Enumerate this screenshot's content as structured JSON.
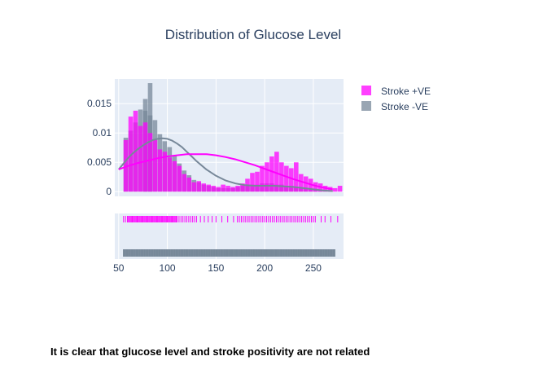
{
  "caption": "It is clear that glucose level and stroke positivity are not related",
  "colors": {
    "plot_bg": "#e5ecf6",
    "grid": "#ffffff",
    "stroke_pos": "#ff00ff",
    "stroke_neg": "#778899"
  },
  "chart_data": {
    "type": "histogram",
    "title": "Distribution of Glucose Level",
    "xlabel": "",
    "ylabel": "",
    "xlim": [
      46,
      281
    ],
    "ylim": [
      -0.0008,
      0.0192
    ],
    "x_ticks": [
      50,
      100,
      150,
      200,
      250
    ],
    "y_ticks": [
      {
        "value": 0,
        "label": "0"
      },
      {
        "value": 0.005,
        "label": "0.005"
      },
      {
        "value": 0.01,
        "label": "0.01"
      },
      {
        "value": 0.015,
        "label": "0.015"
      }
    ],
    "grid": true,
    "legend_position": "top-right",
    "series": [
      {
        "name": "Stroke +VE",
        "color": "#ff00ff",
        "opacity": 0.75,
        "bin_start": 55,
        "bin_width": 5,
        "density": [
          0.0088,
          0.0128,
          0.0138,
          0.0112,
          0.0118,
          0.01,
          0.0088,
          0.0072,
          0.0068,
          0.0058,
          0.0052,
          0.0044,
          0.003,
          0.0024,
          0.0016,
          0.0018,
          0.0014,
          0.0012,
          0.001,
          0.0008,
          0.0012,
          0.001,
          0.0008,
          0.001,
          0.0014,
          0.0022,
          0.0032,
          0.0034,
          0.0044,
          0.005,
          0.006,
          0.0068,
          0.005,
          0.0044,
          0.004,
          0.005,
          0.003,
          0.0026,
          0.0022,
          0.0016,
          0.0014,
          0.001,
          0.0008,
          0.0006,
          0.001
        ],
        "kde_x": [
          50,
          60,
          70,
          80,
          90,
          100,
          110,
          120,
          130,
          140,
          150,
          160,
          170,
          180,
          190,
          200,
          210,
          220,
          230,
          240,
          250,
          260,
          270
        ],
        "kde_y": [
          0.0038,
          0.0044,
          0.0049,
          0.0053,
          0.0057,
          0.006,
          0.0062,
          0.0064,
          0.0064,
          0.0064,
          0.0062,
          0.0059,
          0.0055,
          0.005,
          0.0045,
          0.0039,
          0.0033,
          0.0027,
          0.0021,
          0.0016,
          0.0011,
          0.0007,
          0.0004
        ],
        "rug": [
          55,
          57,
          59,
          60,
          61,
          62,
          63,
          64,
          65,
          66,
          67,
          68,
          69,
          70,
          71,
          72,
          73,
          74,
          75,
          76,
          77,
          78,
          79,
          80,
          81,
          82,
          83,
          84,
          85,
          86,
          87,
          88,
          89,
          90,
          91,
          92,
          93,
          94,
          95,
          96,
          97,
          98,
          99,
          100,
          101,
          102,
          103,
          104,
          105,
          106,
          107,
          108,
          109,
          110,
          112,
          114,
          116,
          118,
          120,
          122,
          124,
          126,
          128,
          130,
          134,
          138,
          142,
          146,
          150,
          156,
          162,
          168,
          172,
          174,
          176,
          178,
          180,
          182,
          184,
          186,
          188,
          190,
          192,
          194,
          196,
          198,
          200,
          202,
          204,
          206,
          208,
          210,
          212,
          214,
          216,
          218,
          220,
          222,
          224,
          226,
          228,
          230,
          232,
          234,
          236,
          238,
          240,
          242,
          244,
          246,
          248,
          250,
          252,
          258,
          262,
          268,
          275
        ]
      },
      {
        "name": "Stroke -VE",
        "color": "#778899",
        "opacity": 0.75,
        "bin_start": 55,
        "bin_width": 5,
        "density": [
          0.0092,
          0.0104,
          0.0118,
          0.014,
          0.0138,
          0.013,
          0.0122,
          0.0098,
          0.0086,
          0.0076,
          0.0062,
          0.0048,
          0.0036,
          0.0028,
          0.002,
          0.0016,
          0.0012,
          0.001,
          0.0008,
          0.0006,
          0.0006,
          0.0006,
          0.0006,
          0.0008,
          0.001,
          0.0012,
          0.0012,
          0.0012,
          0.0014,
          0.0014,
          0.0014,
          0.0012,
          0.0012,
          0.001,
          0.001,
          0.0008,
          0.0006,
          0.0006,
          0.0004,
          0.0004,
          0.0002,
          0.0002,
          0.0002
        ],
        "extra_bins": [
          {
            "x": 80,
            "width": 5,
            "density": 0.0185
          },
          {
            "x": 75,
            "width": 5,
            "density": 0.0158
          }
        ],
        "kde_x": [
          50,
          55,
          60,
          65,
          70,
          75,
          80,
          85,
          90,
          95,
          100,
          105,
          110,
          115,
          120,
          125,
          130,
          140,
          150,
          160,
          170,
          180,
          190,
          200,
          210,
          220,
          230,
          240,
          250,
          260,
          270
        ],
        "kde_y": [
          0.0038,
          0.0048,
          0.0058,
          0.0066,
          0.0073,
          0.0079,
          0.0084,
          0.0088,
          0.009,
          0.0091,
          0.009,
          0.0087,
          0.0082,
          0.0076,
          0.0068,
          0.006,
          0.0052,
          0.0038,
          0.0027,
          0.0019,
          0.0014,
          0.0011,
          0.001,
          0.001,
          0.001,
          0.0009,
          0.0008,
          0.0006,
          0.0004,
          0.0002,
          0.0001
        ],
        "rug_range": [
          55,
          272
        ]
      }
    ]
  }
}
